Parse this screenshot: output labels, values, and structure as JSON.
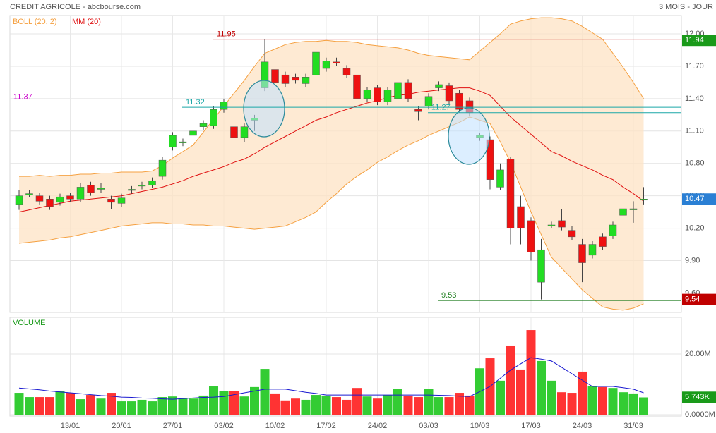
{
  "chart_data": [
    {
      "type": "candlestick",
      "title": "CREDIT AGRICOLE - abcbourse.com",
      "subtitle": "3 MOIS - JOUR",
      "ylim": [
        9.42,
        12.17
      ],
      "yticks": [
        {
          "value": 9.6,
          "label": "9.60"
        },
        {
          "value": 9.9,
          "label": "9.90"
        },
        {
          "value": 10.2,
          "label": "10.20"
        },
        {
          "value": 10.5,
          "label": "10.50"
        },
        {
          "value": 10.8,
          "label": "10.80"
        },
        {
          "value": 11.1,
          "label": "11.10"
        },
        {
          "value": 11.4,
          "label": "11.40"
        },
        {
          "value": 11.7,
          "label": "11.70"
        },
        {
          "value": 12,
          "label": "12.00"
        }
      ],
      "grid": true,
      "up_color": "#22dd22",
      "down_color": "#ee1111",
      "open": [
        10.42,
        10.51,
        10.5,
        10.47,
        10.44,
        10.5,
        10.47,
        10.6,
        10.56,
        10.47,
        10.43,
        10.55,
        10.59,
        10.6,
        10.68,
        10.95,
        10.99,
        11.06,
        11.14,
        11.15,
        11.3,
        11.14,
        11.04,
        11.2,
        11.5,
        11.67,
        11.62,
        11.6,
        11.54,
        11.62,
        11.68,
        11.74,
        11.68,
        11.62,
        11.4,
        11.5,
        11.37,
        11.4,
        11.55,
        11.3,
        11.33,
        11.5,
        11.52,
        11.45,
        11.38,
        11.04,
        11.02,
        10.58,
        10.84,
        10.4,
        10.27,
        9.7,
        10.22,
        10.27,
        10.18,
        10.05,
        9.95,
        10.12,
        10.13,
        10.32,
        10.37,
        10.46
      ],
      "high": [
        10.55,
        10.55,
        10.53,
        10.5,
        10.52,
        10.53,
        10.62,
        10.63,
        10.62,
        10.5,
        10.52,
        10.59,
        10.63,
        10.67,
        10.86,
        11.09,
        11.03,
        11.13,
        11.2,
        11.33,
        11.4,
        11.18,
        11.17,
        11.25,
        11.95,
        11.7,
        11.65,
        11.63,
        11.63,
        11.86,
        11.78,
        11.78,
        11.71,
        11.65,
        11.51,
        11.53,
        11.51,
        11.67,
        11.58,
        11.33,
        11.45,
        11.56,
        11.55,
        11.48,
        11.41,
        11.08,
        11.05,
        10.8,
        10.86,
        10.5,
        10.3,
        10.1,
        10.26,
        10.38,
        10.22,
        10.1,
        10.08,
        10.15,
        10.26,
        10.45,
        10.45,
        10.58
      ],
      "low": [
        10.37,
        10.49,
        10.42,
        10.37,
        10.41,
        10.44,
        10.44,
        10.5,
        10.53,
        10.38,
        10.4,
        10.52,
        10.56,
        10.57,
        10.65,
        10.92,
        10.96,
        11.03,
        11.11,
        11.12,
        11.27,
        11.01,
        11.0,
        11.1,
        11.47,
        11.52,
        11.51,
        11.54,
        11.51,
        11.59,
        11.65,
        11.7,
        11.59,
        11.37,
        11.37,
        11.34,
        11.34,
        11.37,
        11.37,
        11.2,
        11.3,
        11.47,
        11.35,
        11.27,
        11.24,
        11.01,
        10.56,
        10.55,
        10.05,
        10.05,
        9.9,
        9.54,
        10.2,
        10.18,
        10.09,
        9.7,
        9.92,
        10.0,
        10.1,
        10.29,
        10.25,
        10.42
      ],
      "close": [
        10.5,
        10.52,
        10.45,
        10.4,
        10.49,
        10.47,
        10.58,
        10.53,
        10.57,
        10.44,
        10.48,
        10.56,
        10.6,
        10.64,
        10.83,
        11.06,
        11.0,
        11.1,
        11.17,
        11.3,
        11.37,
        11.04,
        11.14,
        11.22,
        11.74,
        11.55,
        11.54,
        11.57,
        11.6,
        11.83,
        11.75,
        11.73,
        11.62,
        11.4,
        11.48,
        11.37,
        11.48,
        11.55,
        11.4,
        11.28,
        11.42,
        11.53,
        11.38,
        11.3,
        11.27,
        11.06,
        10.65,
        10.74,
        10.2,
        10.2,
        9.98,
        10.0,
        10.23,
        10.21,
        10.12,
        9.88,
        10.05,
        10.03,
        10.23,
        10.38,
        10.38,
        10.47
      ],
      "series": [
        {
          "name": "BOLL (20, 2)",
          "color": "#f5a040",
          "upper": [
            10.68,
            10.68,
            10.69,
            10.68,
            10.69,
            10.69,
            10.7,
            10.7,
            10.71,
            10.71,
            10.72,
            10.72,
            10.72,
            10.73,
            10.78,
            10.85,
            10.91,
            10.97,
            11.09,
            11.21,
            11.33,
            11.45,
            11.57,
            11.7,
            11.82,
            11.86,
            11.9,
            11.92,
            11.93,
            11.93,
            11.94,
            11.93,
            11.93,
            11.92,
            11.9,
            11.89,
            11.88,
            11.87,
            11.85,
            11.82,
            11.8,
            11.79,
            11.78,
            11.77,
            11.76,
            11.84,
            11.92,
            12.0,
            12.09,
            12.12,
            12.14,
            12.15,
            12.15,
            12.14,
            12.12,
            12.07,
            12.01,
            11.95,
            11.82,
            11.69,
            11.55,
            11.4
          ],
          "lower": [
            10.06,
            10.07,
            10.08,
            10.09,
            10.11,
            10.12,
            10.14,
            10.16,
            10.18,
            10.2,
            10.22,
            10.23,
            10.24,
            10.25,
            10.25,
            10.24,
            10.24,
            10.23,
            10.23,
            10.22,
            10.22,
            10.21,
            10.2,
            10.19,
            10.2,
            10.21,
            10.22,
            10.26,
            10.3,
            10.35,
            10.44,
            10.52,
            10.61,
            10.68,
            10.74,
            10.81,
            10.86,
            10.92,
            10.97,
            11.01,
            11.06,
            11.1,
            11.14,
            11.18,
            11.23,
            11.2,
            11.17,
            11.0,
            10.81,
            10.58,
            10.35,
            10.14,
            9.93,
            9.83,
            9.73,
            9.63,
            9.55,
            9.47,
            9.45,
            9.44,
            9.46,
            9.5
          ]
        },
        {
          "name": "MM (20)",
          "color": "#e01010",
          "values": [
            10.35,
            10.37,
            10.39,
            10.41,
            10.43,
            10.45,
            10.46,
            10.47,
            10.48,
            10.49,
            10.5,
            10.52,
            10.54,
            10.56,
            10.58,
            10.61,
            10.64,
            10.68,
            10.71,
            10.74,
            10.77,
            10.81,
            10.84,
            10.89,
            10.95,
            11.0,
            11.05,
            11.1,
            11.15,
            11.2,
            11.23,
            11.27,
            11.3,
            11.33,
            11.36,
            11.38,
            11.41,
            11.43,
            11.44,
            11.46,
            11.47,
            11.48,
            11.49,
            11.5,
            11.5,
            11.47,
            11.43,
            11.33,
            11.23,
            11.15,
            11.07,
            10.99,
            10.91,
            10.87,
            10.82,
            10.78,
            10.74,
            10.69,
            10.65,
            10.58,
            10.52,
            10.45
          ]
        }
      ],
      "levels": [
        {
          "value": 11.95,
          "color": "#c00000"
        },
        {
          "value": 11.37,
          "color": "#cc00cc"
        },
        {
          "value": 11.32,
          "color": "#1aa7a7"
        },
        {
          "value": 11.27,
          "color": "#1aa7a7"
        },
        {
          "value": 9.53,
          "color": "#1a7a1a"
        }
      ],
      "last_markers": [
        {
          "value": 11.94,
          "color": "#1a9a1a"
        },
        {
          "value": 10.47,
          "color": "#2a7fd4"
        },
        {
          "value": 9.54,
          "color": "#c00000"
        }
      ]
    },
    {
      "type": "bar",
      "title": "VOLUME",
      "categories": [
        null,
        null,
        null,
        null,
        null,
        "13/01",
        null,
        null,
        null,
        null,
        "20/01",
        null,
        null,
        null,
        null,
        "27/01",
        null,
        null,
        null,
        null,
        "03/02",
        null,
        null,
        null,
        null,
        "10/02",
        null,
        null,
        null,
        null,
        "17/02",
        null,
        null,
        null,
        null,
        "24/02",
        null,
        null,
        null,
        null,
        "03/03",
        null,
        null,
        null,
        null,
        "10/03",
        null,
        null,
        null,
        null,
        "17/03",
        null,
        null,
        null,
        null,
        "24/03",
        null,
        null,
        null,
        null,
        "31/03",
        null
      ],
      "ylim": [
        0,
        32.1
      ],
      "yticks": [
        {
          "value": 0,
          "label": "0.0000M"
        },
        {
          "value": 20,
          "label": "20.00M"
        }
      ],
      "grid": true,
      "up_color": "#33cc33",
      "down_color": "#ff3333",
      "values": [
        7.2,
        5.8,
        5.8,
        5.8,
        7.7,
        7.2,
        5.1,
        6.5,
        5.3,
        7.2,
        4.4,
        4.4,
        4.9,
        4.4,
        5.8,
        6.0,
        5.3,
        5.3,
        6.3,
        9.3,
        7.7,
        7.9,
        6.0,
        9.1,
        15.1,
        7.0,
        4.7,
        5.3,
        4.9,
        6.5,
        6.3,
        5.8,
        4.9,
        8.8,
        6.0,
        5.3,
        6.5,
        8.4,
        6.3,
        5.8,
        8.4,
        5.8,
        5.8,
        7.2,
        6.3,
        15.3,
        18.6,
        11.2,
        22.8,
        14.9,
        27.9,
        17.7,
        11.2,
        7.4,
        7.2,
        14.2,
        9.3,
        9.1,
        8.8,
        7.4,
        7.0,
        5.7
      ],
      "average": {
        "color": "#1a1ad0",
        "values": [
          8.8,
          8.5,
          8.2,
          7.8,
          7.5,
          7.2,
          6.9,
          6.6,
          6.3,
          6.1,
          5.8,
          5.7,
          5.5,
          5.4,
          5.2,
          5.1,
          5.3,
          5.5,
          5.7,
          5.8,
          6.0,
          6.6,
          7.2,
          7.8,
          8.4,
          8.4,
          8.4,
          7.9,
          7.4,
          7.0,
          6.5,
          6.5,
          6.5,
          6.5,
          6.5,
          6.5,
          6.5,
          6.5,
          6.5,
          6.5,
          6.5,
          6.4,
          6.3,
          6.1,
          6.0,
          7.6,
          9.3,
          12.0,
          14.7,
          16.8,
          18.8,
          18.3,
          17.7,
          15.6,
          13.5,
          11.4,
          9.3,
          9.3,
          9.3,
          8.9,
          8.4,
          7.2
        ]
      },
      "last": {
        "value": 5.743,
        "label": "5 743K",
        "color": "#1a9a1a"
      }
    }
  ]
}
